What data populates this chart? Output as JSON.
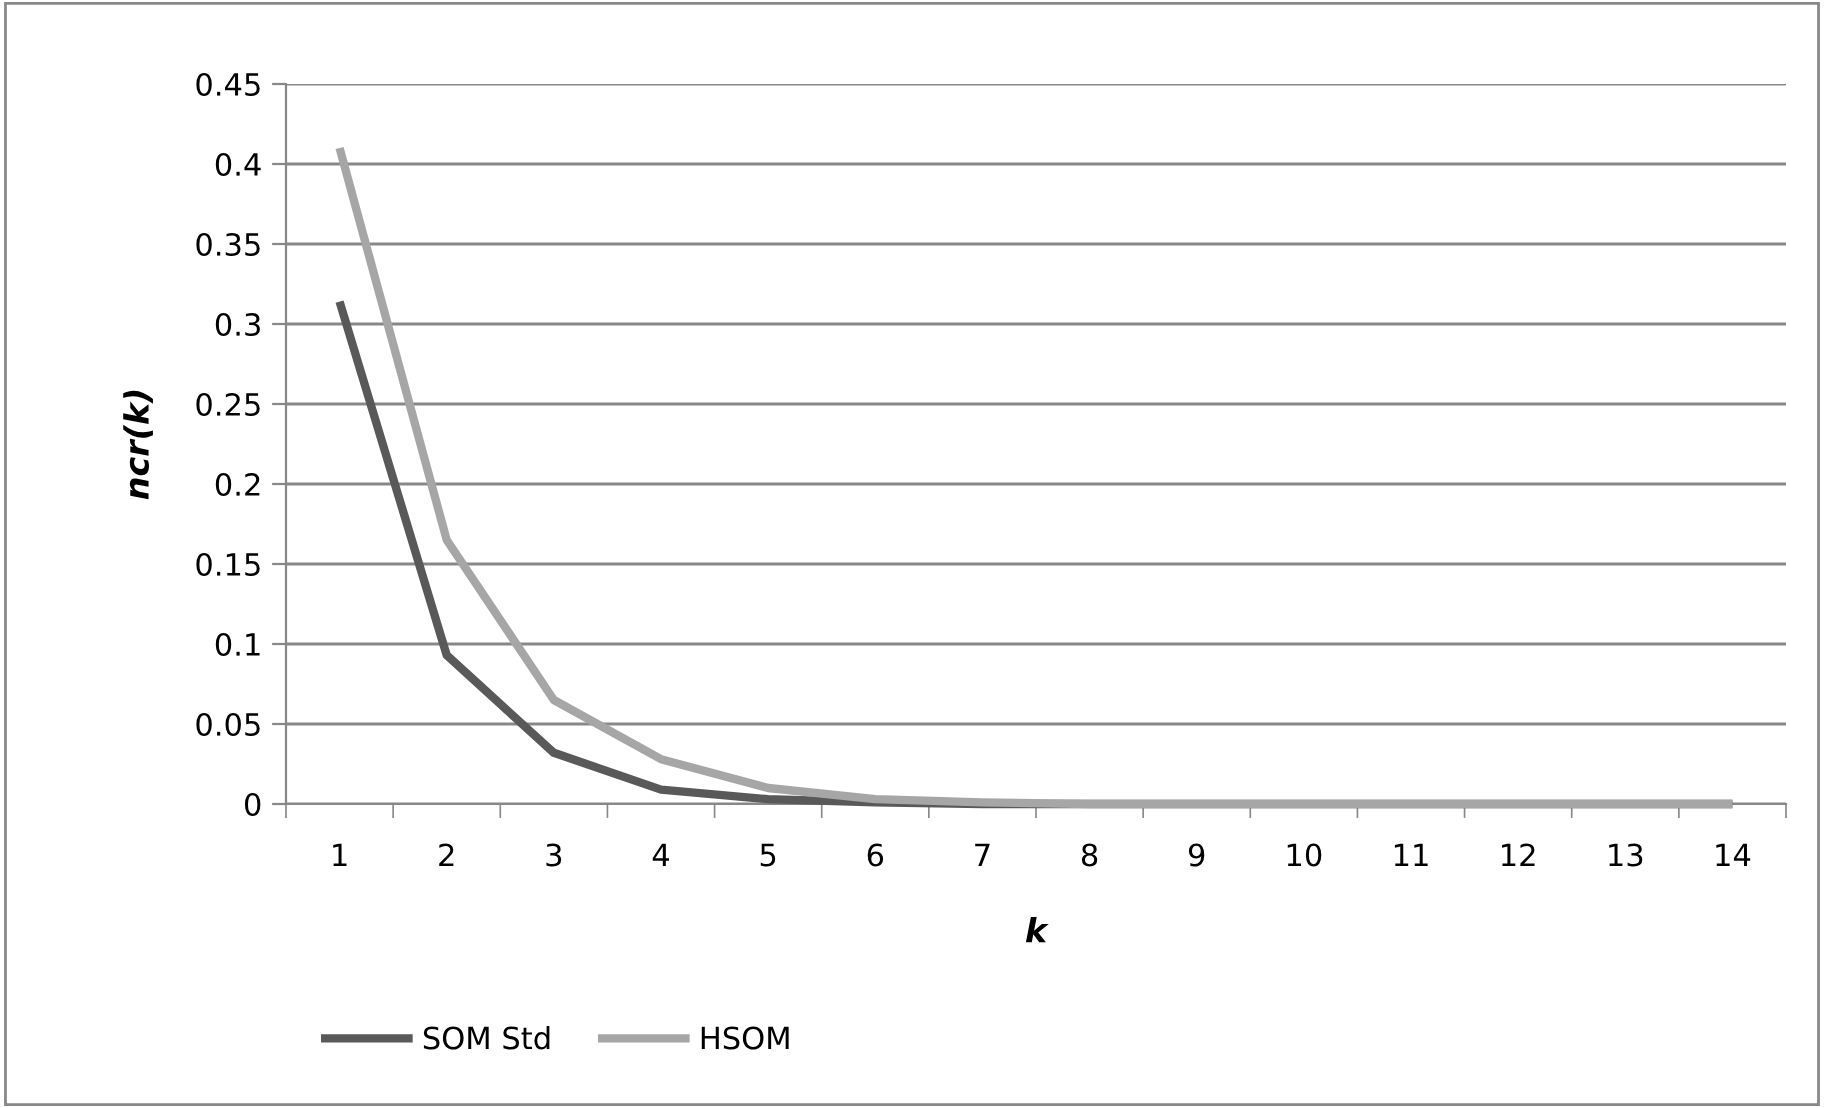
{
  "chart_data": {
    "type": "line",
    "xlabel": "k",
    "ylabel": "ncr(k)",
    "categories": [
      "1",
      "2",
      "3",
      "4",
      "5",
      "6",
      "7",
      "8",
      "9",
      "10",
      "11",
      "12",
      "13",
      "14"
    ],
    "series": [
      {
        "name": "SOM Std",
        "color": "#595959",
        "values": [
          0.314,
          0.093,
          0.032,
          0.009,
          0.003,
          0.001,
          0,
          0,
          0,
          0,
          0,
          0,
          0,
          0
        ]
      },
      {
        "name": "HSOM",
        "color": "#a6a6a6",
        "values": [
          0.41,
          0.165,
          0.065,
          0.028,
          0.01,
          0.003,
          0.001,
          0,
          0,
          0,
          0,
          0,
          0,
          0
        ]
      }
    ],
    "ylim": [
      0,
      0.45
    ],
    "yticks": [
      0,
      0.05,
      0.1,
      0.15,
      0.2,
      0.25,
      0.3,
      0.35,
      0.4,
      0.45
    ],
    "grid": "y",
    "legend": "bottom left",
    "marker": "none",
    "line_style": "solid"
  }
}
